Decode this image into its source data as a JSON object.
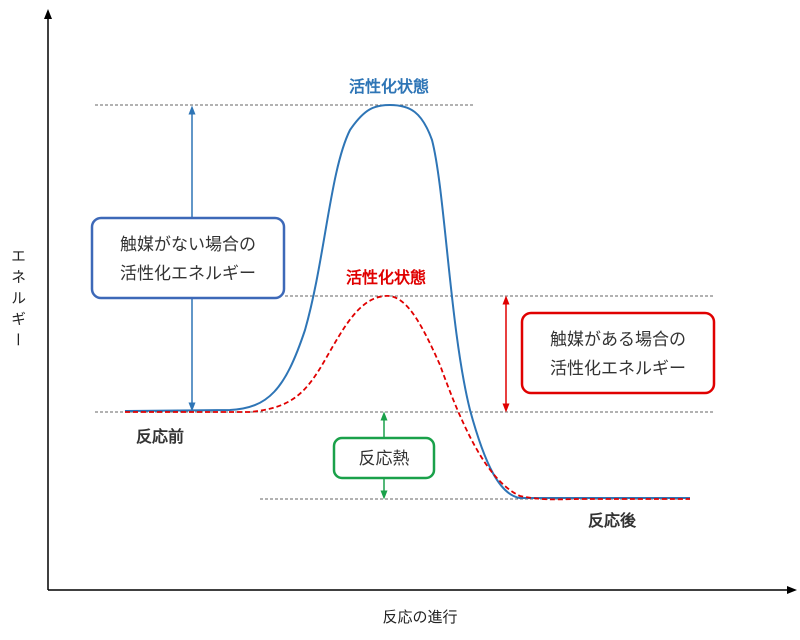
{
  "axis": {
    "y_label": "エネルギー",
    "x_label": "反応の進行"
  },
  "labels": {
    "activated_state_uncatalyzed": "活性化状態",
    "activated_state_catalyzed": "活性化状態",
    "before_reaction": "反応前",
    "after_reaction": "反応後"
  },
  "boxes": {
    "uncatalyzed": {
      "line1": "触媒がない場合の",
      "line2": "活性化エネルギー"
    },
    "catalyzed": {
      "line1": "触媒がある場合の",
      "line2": "活性化エネルギー"
    },
    "heat": {
      "text": "反応熱"
    }
  },
  "colors": {
    "uncatalyzed": "#2e75b6",
    "catalyzed": "#e00000",
    "heat": "#1aa14a",
    "axis": "#000000",
    "dashed": "#666666"
  }
}
